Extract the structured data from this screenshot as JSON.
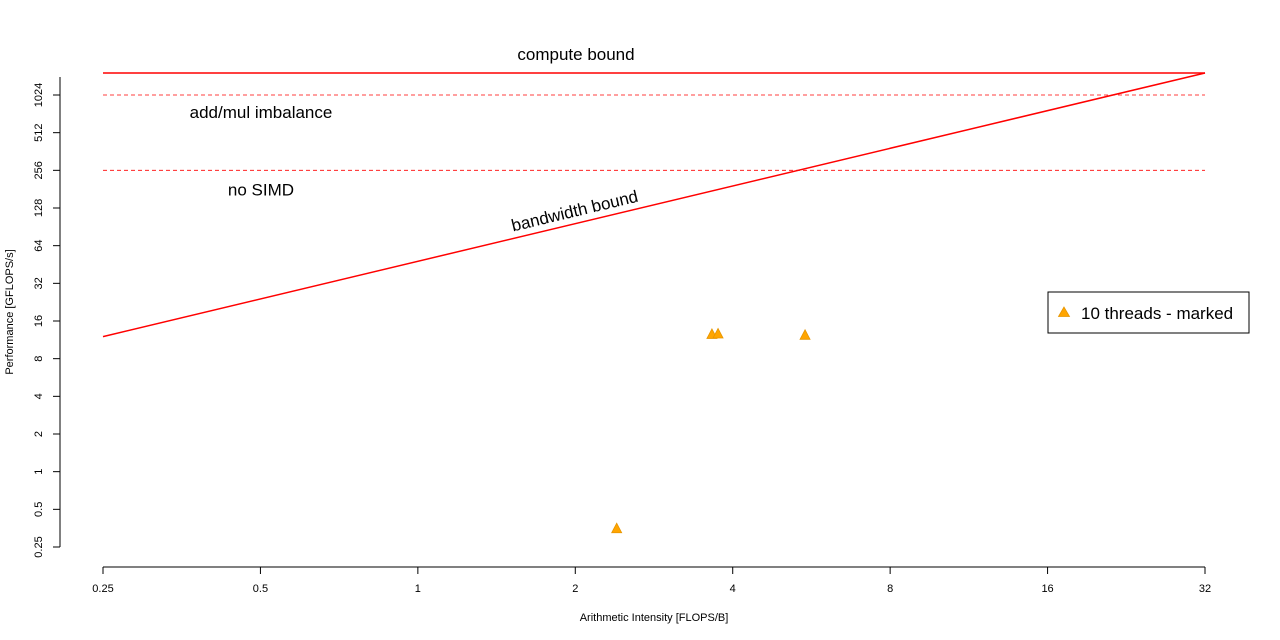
{
  "chart_data": {
    "type": "scatter",
    "title": "",
    "xlabel": "Arithmetic Intensity [FLOPS/B]",
    "ylabel": "Performance [GFLOPS/s]",
    "x_scale": "log2",
    "y_scale": "log2",
    "xlim": [
      0.25,
      32
    ],
    "ylim": [
      0.25,
      1024
    ],
    "x_ticks": [
      "0.25",
      "0.5",
      "1",
      "2",
      "4",
      "8",
      "16",
      "32"
    ],
    "y_ticks": [
      "0.25",
      "0.5",
      "1",
      "2",
      "4",
      "8",
      "16",
      "32",
      "64",
      "128",
      "256",
      "512",
      "1024"
    ],
    "grid": false,
    "roofline": {
      "compute_peak": 1536,
      "bandwidth_gbs": 48,
      "ceilings": [
        {
          "label": "add/mul imbalance",
          "value": 1024
        },
        {
          "label": "no SIMD",
          "value": 256
        }
      ],
      "labels": {
        "compute": "compute bound",
        "bandwidth": "bandwidth bound"
      },
      "color": "#ff0000"
    },
    "series": [
      {
        "name": "10 threads - marked",
        "marker": "triangle",
        "color": "#ffa500",
        "points": [
          {
            "x": 2.4,
            "y": 0.35
          },
          {
            "x": 3.65,
            "y": 12.5
          },
          {
            "x": 3.75,
            "y": 12.6
          },
          {
            "x": 5.5,
            "y": 12.3
          }
        ]
      }
    ],
    "legend_position": "right"
  }
}
